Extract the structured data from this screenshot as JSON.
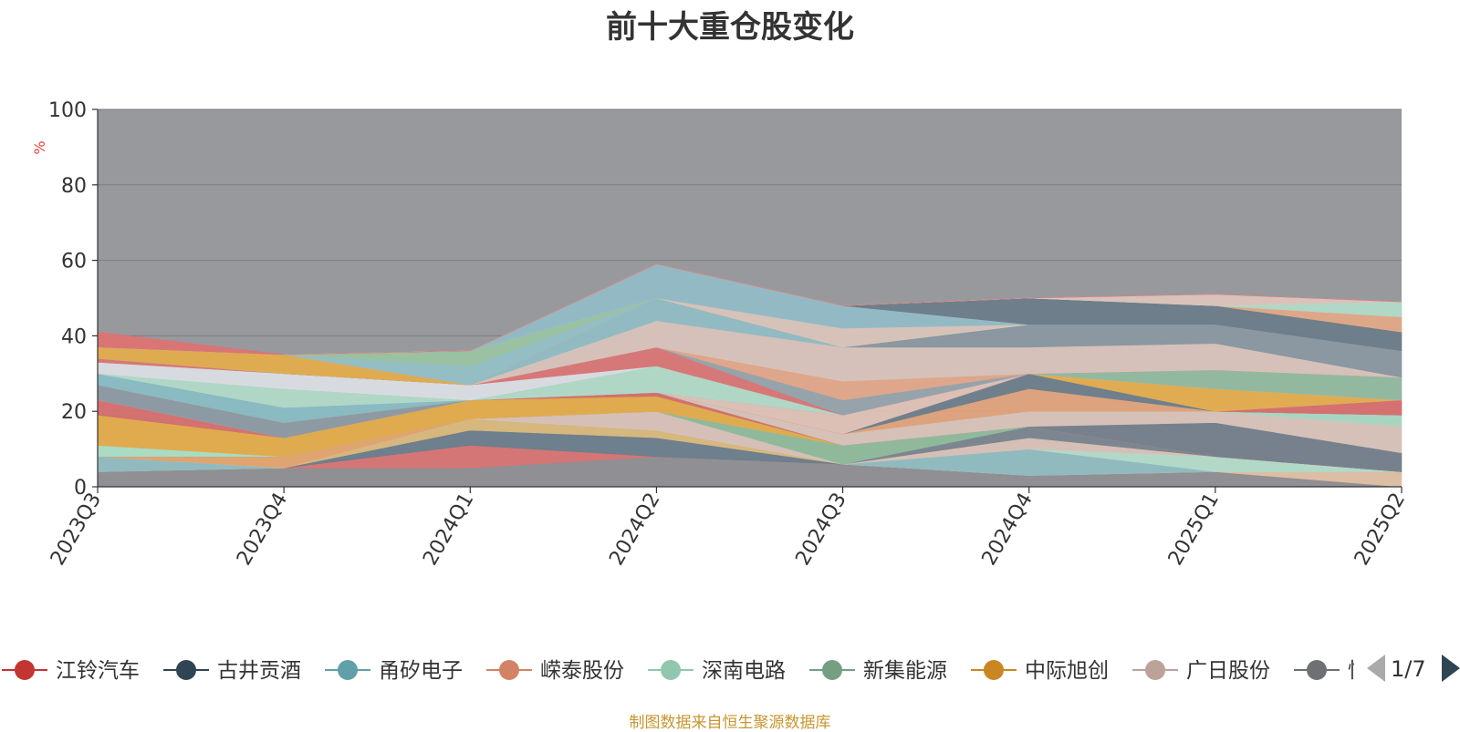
{
  "title": "前十大重仓股变化",
  "footer": "制图数据来自恒生聚源数据库",
  "legend_page": "1/7",
  "chart_data": {
    "type": "area",
    "stacked": true,
    "categories": [
      "2023Q3",
      "2023Q4",
      "2024Q1",
      "2024Q2",
      "2024Q3",
      "2024Q4",
      "2025Q1",
      "2025Q2"
    ],
    "ylabel": "%",
    "ylim": [
      0,
      100
    ],
    "yticks": [
      0,
      20,
      40,
      60,
      80,
      100
    ],
    "plot_background": "#98999d",
    "grid": true,
    "legend_position": "bottom",
    "series": [
      {
        "color": "#8e8e93",
        "values": [
          4,
          5,
          5,
          8,
          6,
          3,
          4,
          0
        ]
      },
      {
        "color": "#d87474",
        "values": [
          0,
          0,
          6,
          0,
          0,
          0,
          0,
          0
        ]
      },
      {
        "color": "#6c7d8c",
        "values": [
          0,
          0,
          4,
          5,
          0,
          0,
          0,
          0
        ]
      },
      {
        "color": "#d9b87c",
        "values": [
          0,
          0,
          3,
          2,
          0,
          0,
          0,
          0
        ]
      },
      {
        "color": "#dfc0a4",
        "values": [
          0,
          0,
          0,
          0,
          0,
          0,
          0,
          4
        ]
      },
      {
        "color": "#90bcc1",
        "values": [
          4,
          0,
          0,
          0,
          0,
          7,
          0,
          0
        ]
      },
      {
        "color": "#b3dcca",
        "values": [
          0,
          0,
          0,
          0,
          0,
          0,
          4,
          0
        ]
      },
      {
        "color": "#d8c1b8",
        "values": [
          0,
          0,
          0,
          5,
          0,
          3,
          0,
          0
        ]
      },
      {
        "color": "#e3a46e",
        "values": [
          0,
          3,
          0,
          0,
          0,
          0,
          0,
          0
        ]
      },
      {
        "color": "#7a8590",
        "values": [
          0,
          0,
          0,
          0,
          0,
          3,
          0,
          0
        ]
      },
      {
        "color": "#aadfc4",
        "values": [
          3,
          0,
          0,
          0,
          0,
          0,
          0,
          0
        ]
      },
      {
        "color": "#8fba9c",
        "values": [
          0,
          0,
          0,
          0,
          5,
          0,
          0,
          0
        ]
      },
      {
        "color": "#e2aa7c",
        "values": [
          0,
          0,
          0,
          0,
          0,
          0,
          0,
          0
        ]
      },
      {
        "color": "#e3ac4a",
        "values": [
          8,
          5,
          5,
          4,
          0,
          0,
          0,
          0
        ]
      },
      {
        "color": "#d56e6e",
        "values": [
          1,
          0,
          0,
          1,
          0,
          0,
          0,
          0
        ]
      },
      {
        "color": "#75808c",
        "values": [
          0,
          0,
          0,
          0,
          0,
          0,
          9,
          5
        ]
      },
      {
        "color": "#d9c3b9",
        "values": [
          0,
          0,
          0,
          0,
          3,
          4,
          3,
          7
        ]
      },
      {
        "color": "#a9d8c1",
        "values": [
          0,
          0,
          0,
          0,
          0,
          0,
          0,
          3
        ]
      },
      {
        "color": "#e0a27c",
        "values": [
          0,
          0,
          0,
          0,
          0,
          6,
          0,
          0
        ]
      },
      {
        "color": "#6d7e8b",
        "values": [
          0,
          0,
          0,
          0,
          0,
          4,
          0,
          0
        ]
      },
      {
        "color": "#d86f6f",
        "values": [
          3,
          0,
          0,
          0,
          0,
          0,
          0,
          4
        ]
      },
      {
        "color": "#dfc1b6",
        "values": [
          0,
          0,
          0,
          0,
          5,
          0,
          0,
          0
        ]
      },
      {
        "color": "#8d9aa3",
        "values": [
          4,
          4,
          0,
          0,
          0,
          0,
          0,
          0
        ]
      },
      {
        "color": "#e5ad4d",
        "values": [
          0,
          0,
          0,
          0,
          0,
          0,
          6,
          0
        ]
      },
      {
        "color": "#89bcc4",
        "values": [
          3,
          4,
          0,
          0,
          0,
          0,
          0,
          0
        ]
      },
      {
        "color": "#b1dac7",
        "values": [
          0,
          5,
          0,
          7,
          0,
          0,
          0,
          0
        ]
      },
      {
        "color": "#92b9a0",
        "values": [
          0,
          0,
          0,
          0,
          0,
          0,
          5,
          6
        ]
      },
      {
        "color": "#dadee4",
        "values": [
          3,
          4,
          4,
          0,
          0,
          0,
          0,
          0
        ]
      },
      {
        "color": "#d97676",
        "values": [
          1,
          0,
          0,
          5,
          0,
          0,
          0,
          0
        ]
      },
      {
        "color": "#97a3ac",
        "values": [
          0,
          0,
          0,
          0,
          4,
          0,
          0,
          0
        ]
      },
      {
        "color": "#e1a68a",
        "values": [
          0,
          0,
          0,
          0,
          5,
          0,
          0,
          0
        ]
      },
      {
        "color": "#d8c3bb",
        "values": [
          0,
          0,
          0,
          7,
          9,
          7,
          7,
          0
        ]
      },
      {
        "color": "#91bcc4",
        "values": [
          0,
          0,
          0,
          6,
          0,
          0,
          0,
          0
        ]
      },
      {
        "color": "#8a97a1",
        "values": [
          0,
          0,
          0,
          0,
          0,
          6,
          5,
          7
        ]
      },
      {
        "color": "#e3ac4c",
        "values": [
          3,
          5,
          0,
          0,
          0,
          0,
          0,
          0
        ]
      },
      {
        "color": "#95bfc6",
        "values": [
          0,
          0,
          5,
          0,
          0,
          0,
          0,
          0
        ]
      },
      {
        "color": "#9ac3a2",
        "values": [
          0,
          0,
          4,
          0,
          0,
          0,
          0,
          0
        ]
      },
      {
        "color": "#d9c4ba",
        "values": [
          0,
          0,
          0,
          0,
          5,
          0,
          0,
          0
        ]
      },
      {
        "color": "#92bcc6",
        "values": [
          0,
          0,
          0,
          9,
          6,
          0,
          0,
          0
        ]
      },
      {
        "color": "#6c7c89",
        "values": [
          0,
          0,
          0,
          0,
          0,
          7,
          5,
          5
        ]
      },
      {
        "color": "#e0a887",
        "values": [
          0,
          0,
          0,
          0,
          0,
          0,
          0,
          4
        ]
      },
      {
        "color": "#b2dac8",
        "values": [
          0,
          0,
          0,
          0,
          0,
          0,
          0,
          4
        ]
      },
      {
        "color": "#dcc4bc",
        "values": [
          0,
          0,
          0,
          0,
          0,
          0,
          3,
          0
        ]
      },
      {
        "color": "#dc7373",
        "values": [
          4,
          0,
          0,
          0,
          0,
          0,
          0,
          0
        ]
      }
    ],
    "legend": [
      {
        "label": "江铃汽车",
        "color": "#c23531"
      },
      {
        "label": "古井贡酒",
        "color": "#2f4554"
      },
      {
        "label": "甬矽电子",
        "color": "#61a0a8"
      },
      {
        "label": "嵘泰股份",
        "color": "#d48265"
      },
      {
        "label": "深南电路",
        "color": "#91c7ae"
      },
      {
        "label": "新集能源",
        "color": "#749f83"
      },
      {
        "label": "中际旭创",
        "color": "#ca8622"
      },
      {
        "label": "广日股份",
        "color": "#bda29a"
      },
      {
        "label": "恒",
        "color": "#6e7074"
      }
    ]
  }
}
